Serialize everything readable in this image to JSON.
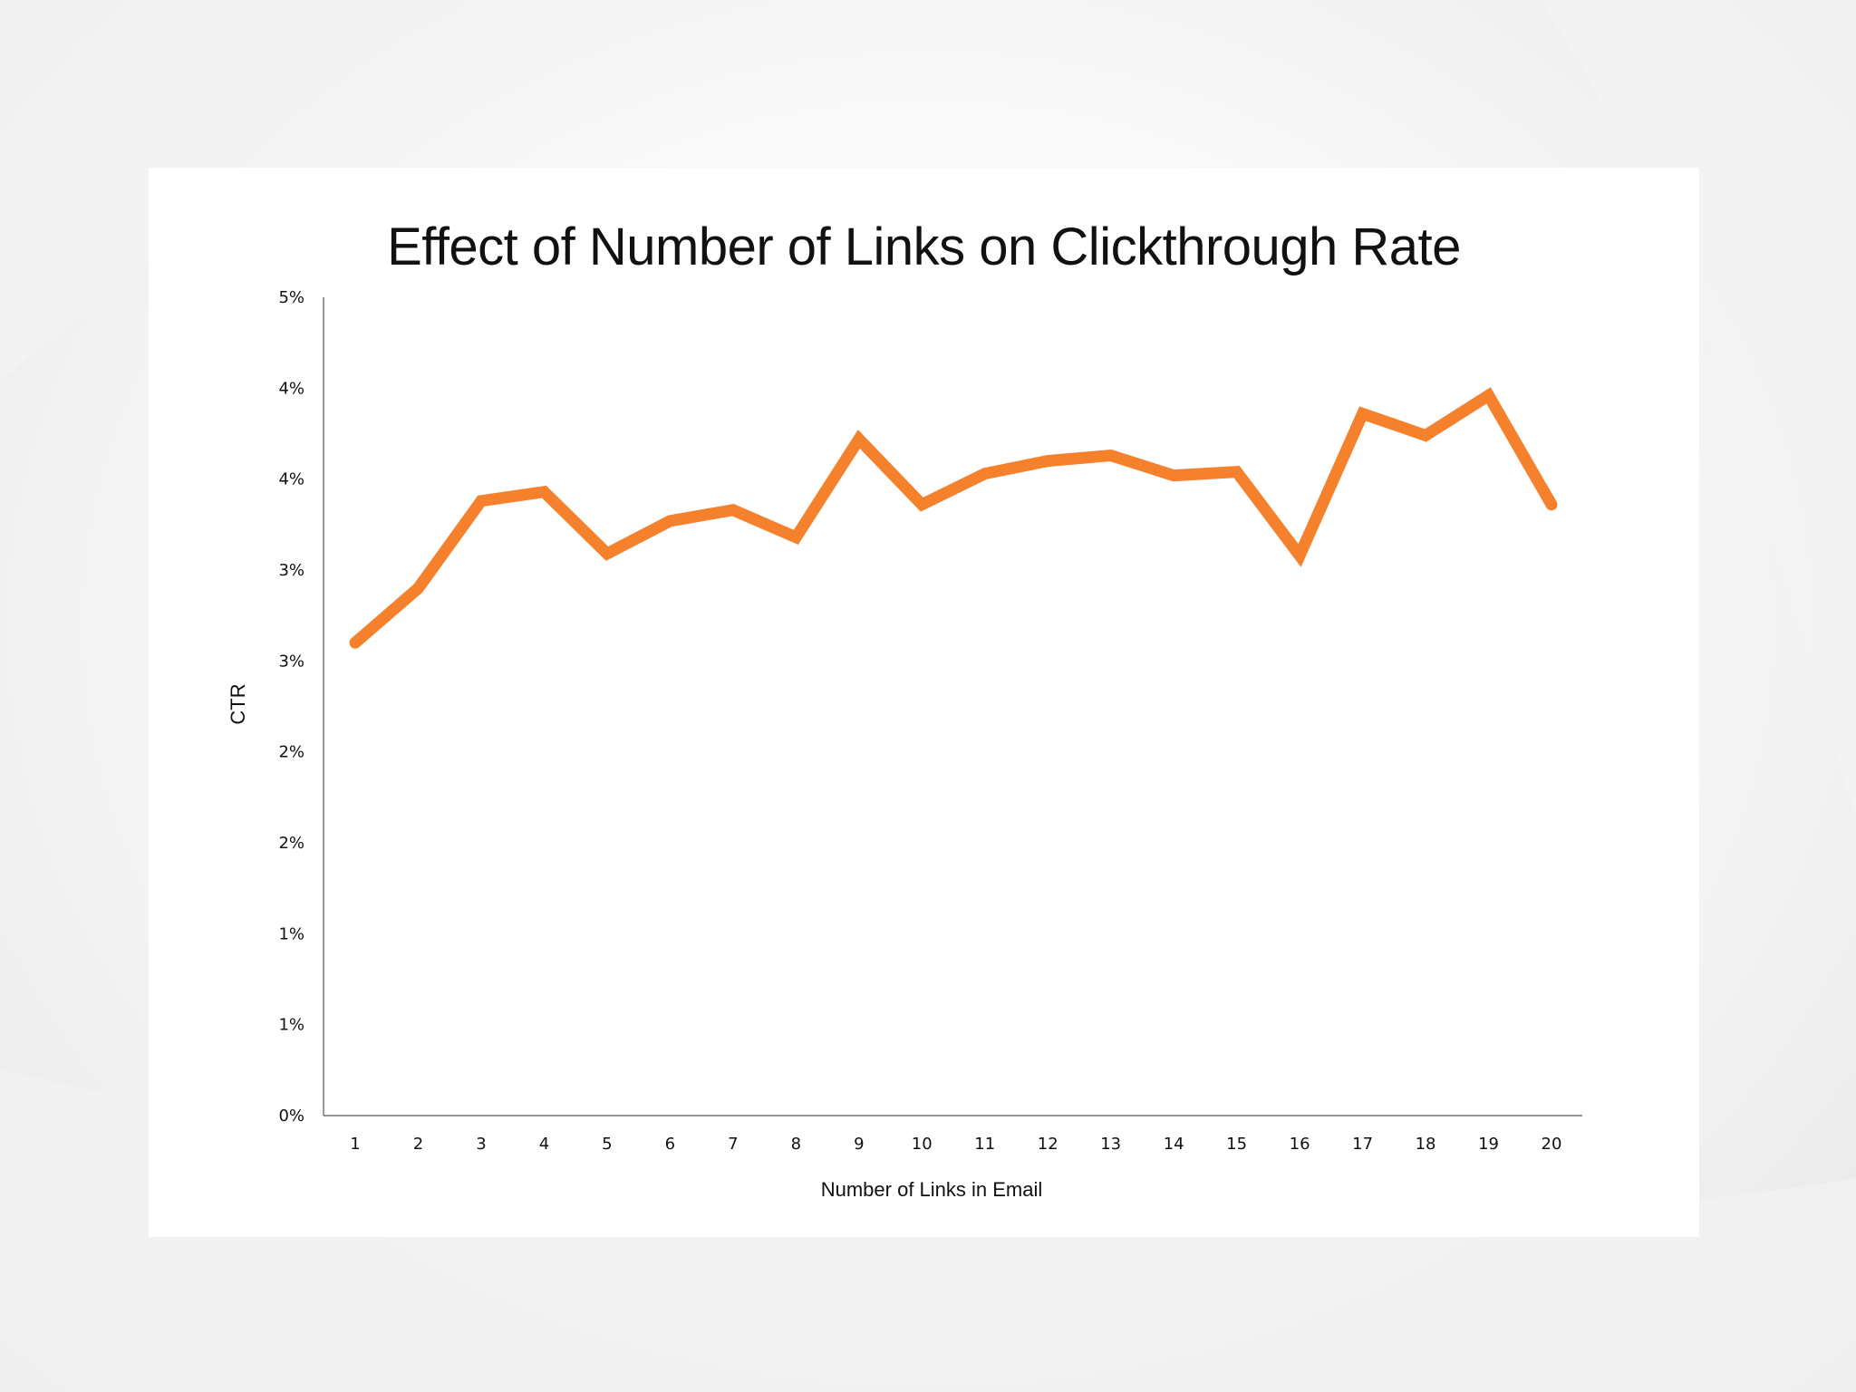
{
  "chart_data": {
    "type": "line",
    "title": "Effect of Number of Links on Clickthrough Rate",
    "xlabel": "Number of Links in Email",
    "ylabel": "CTR",
    "x": [
      "1",
      "2",
      "3",
      "4",
      "5",
      "6",
      "7",
      "8",
      "9",
      "10",
      "11",
      "12",
      "13",
      "14",
      "15",
      "16",
      "17",
      "18",
      "19",
      "20"
    ],
    "series": [
      {
        "name": "CTR",
        "color": "#F5812D",
        "values": [
          2.6,
          2.9,
          3.38,
          3.43,
          3.09,
          3.27,
          3.33,
          3.18,
          3.72,
          3.36,
          3.53,
          3.6,
          3.63,
          3.52,
          3.54,
          3.08,
          3.86,
          3.74,
          3.96,
          3.36
        ]
      }
    ],
    "ylim": [
      0,
      4.5
    ],
    "yticks": [
      {
        "value": 0,
        "label": "0%"
      },
      {
        "value": 0.5,
        "label": "1%"
      },
      {
        "value": 1.0,
        "label": "1%"
      },
      {
        "value": 1.5,
        "label": "2%"
      },
      {
        "value": 2.0,
        "label": "2%"
      },
      {
        "value": 2.5,
        "label": "3%"
      },
      {
        "value": 3.0,
        "label": "3%"
      },
      {
        "value": 3.5,
        "label": "4%"
      },
      {
        "value": 4.0,
        "label": "4%"
      },
      {
        "value": 4.5,
        "label": "5%"
      }
    ],
    "grid": false,
    "legend": "none"
  }
}
